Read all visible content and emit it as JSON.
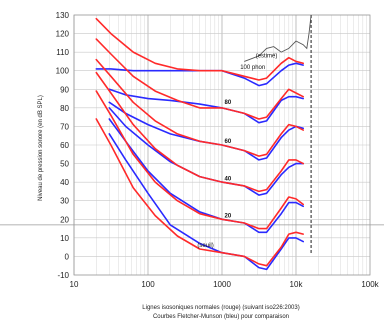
{
  "chart_data": {
    "type": "line",
    "title": "",
    "xlabel": "Lignes isosoniques normales (rouge) (suivant iso226:2003)",
    "subtitle": "Courbes Fletcher-Munson (bleu) pour comparaison",
    "ylabel": "Niveau de pression sonore (en dB SPL)",
    "xscale": "log",
    "xlim": [
      10,
      100000
    ],
    "ylim": [
      -10,
      130
    ],
    "grid": true,
    "x_ticks": [
      "10",
      "100",
      "1000",
      "10k",
      "100k"
    ],
    "y_ticks": [
      "130",
      "120",
      "110",
      "100",
      "90",
      "80",
      "70",
      "60",
      "50",
      "40",
      "30",
      "20",
      "10",
      "0",
      "-10"
    ],
    "colors": {
      "iso": "#ff2a2a",
      "fletcher": "#2a2aff",
      "threshold": "#555555",
      "grid": "#c8c8c8"
    },
    "annotations": [
      {
        "text": "(estimé)",
        "x": 4000,
        "y": 107
      },
      {
        "text": "100 phon",
        "x": 2600,
        "y": 101
      },
      {
        "text": "80",
        "x": 1200,
        "y": 82
      },
      {
        "text": "60",
        "x": 1200,
        "y": 61
      },
      {
        "text": "40",
        "x": 1200,
        "y": 41
      },
      {
        "text": "20",
        "x": 1200,
        "y": 21
      },
      {
        "text": "(seuil)",
        "x": 600,
        "y": 5
      }
    ],
    "series": [
      {
        "name": "ISO 226 (rouge)",
        "curves": [
          {
            "phon": 100,
            "x": [
              20,
              31.5,
              63,
              125,
              250,
              500,
              1000,
              2000,
              3150,
              4000,
              6300,
              8000,
              10000,
              12500
            ],
            "y": [
              128,
              120,
              110,
              104,
              101,
              100,
              100,
              97,
              95,
              96,
              104,
              107,
              105,
              104
            ]
          },
          {
            "phon": 80,
            "x": [
              20,
              31.5,
              63,
              125,
              250,
              500,
              1000,
              2000,
              3150,
              4000,
              6300,
              8000,
              10000,
              12500
            ],
            "y": [
              117,
              109,
              97,
              89,
              84,
              80,
              80,
              77,
              74,
              75,
              85,
              90,
              88,
              86
            ]
          },
          {
            "phon": 60,
            "x": [
              20,
              31.5,
              63,
              125,
              250,
              500,
              1000,
              2000,
              3150,
              4000,
              6300,
              8000,
              10000,
              12500
            ],
            "y": [
              106,
              97,
              83,
              73,
              66,
              62,
              60,
              57,
              54,
              55,
              66,
              71,
              70,
              68
            ]
          },
          {
            "phon": 40,
            "x": [
              20,
              31.5,
              63,
              125,
              250,
              500,
              1000,
              2000,
              3150,
              4000,
              6300,
              8000,
              10000,
              12500
            ],
            "y": [
              99,
              88,
              71,
              58,
              49,
              43,
              40,
              38,
              35,
              36,
              46,
              52,
              52,
              50
            ]
          },
          {
            "phon": 20,
            "x": [
              20,
              31.5,
              63,
              125,
              250,
              500,
              1000,
              2000,
              3150,
              4000,
              6300,
              8000,
              10000,
              12500
            ],
            "y": [
              89,
              76,
              55,
              40,
              30,
              23,
              20,
              18,
              15,
              15,
              26,
              32,
              31,
              28
            ]
          },
          {
            "phon": 0,
            "x": [
              20,
              31.5,
              63,
              125,
              250,
              500,
              1000,
              2000,
              3150,
              4000,
              6300,
              8000,
              10000,
              12500
            ],
            "y": [
              74,
              60,
              37,
              22,
              11,
              4,
              2,
              0,
              -4,
              -5,
              5,
              12,
              13,
              12
            ]
          }
        ]
      },
      {
        "name": "Fletcher-Munson (bleu)",
        "curves": [
          {
            "phon": 100,
            "x": [
              20,
              31.5,
              63,
              125,
              250,
              500,
              1000,
              2000,
              3150,
              4000,
              6300,
              8000,
              10000,
              12500
            ],
            "y": [
              101,
              101,
              100,
              100,
              100,
              100,
              100,
              96,
              92,
              93,
              100,
              103,
              104,
              103
            ]
          },
          {
            "phon": 80,
            "x": [
              30,
              50,
              100,
              200,
              500,
              1000,
              2000,
              3150,
              4000,
              6300,
              8000,
              10000,
              12500
            ],
            "y": [
              90,
              87,
              85,
              84,
              82,
              80,
              77,
              72,
              73,
              84,
              86,
              86,
              85
            ]
          },
          {
            "phon": 60,
            "x": [
              30,
              50,
              100,
              200,
              500,
              1000,
              2000,
              3150,
              4000,
              6300,
              8000,
              10000,
              12500
            ],
            "y": [
              83,
              77,
              71,
              66,
              62,
              60,
              57,
              52,
              53,
              64,
              68,
              70,
              69
            ]
          },
          {
            "phon": 40,
            "x": [
              30,
              50,
              100,
              200,
              500,
              1000,
              2000,
              3150,
              4000,
              6300,
              8000,
              10000,
              12500
            ],
            "y": [
              80,
              70,
              60,
              51,
              43,
              40,
              38,
              33,
              34,
              44,
              48,
              50,
              50
            ]
          },
          {
            "phon": 20,
            "x": [
              30,
              50,
              100,
              200,
              500,
              1000,
              2000,
              3150,
              4000,
              6300,
              8000,
              10000,
              12500
            ],
            "y": [
              74,
              62,
              46,
              34,
              24,
              20,
              18,
              13,
              13,
              23,
              29,
              29,
              27
            ]
          },
          {
            "phon": 0,
            "x": [
              30,
              50,
              100,
              200,
              500,
              1000,
              2000,
              3150,
              4000,
              6300,
              8000,
              10000,
              12500
            ],
            "y": [
              66,
              52,
              34,
              17,
              7,
              2,
              0,
              -6,
              -7,
              4,
              10,
              10,
              8
            ]
          }
        ]
      }
    ],
    "threshold_line": {
      "x": [
        2000,
        3150,
        4000,
        5000,
        6300,
        8000,
        10000,
        12500,
        14000,
        15000,
        16000
      ],
      "y": [
        105,
        108,
        112,
        113,
        110,
        112,
        116,
        114,
        112,
        120,
        130
      ]
    },
    "reference_line_y": 17
  }
}
